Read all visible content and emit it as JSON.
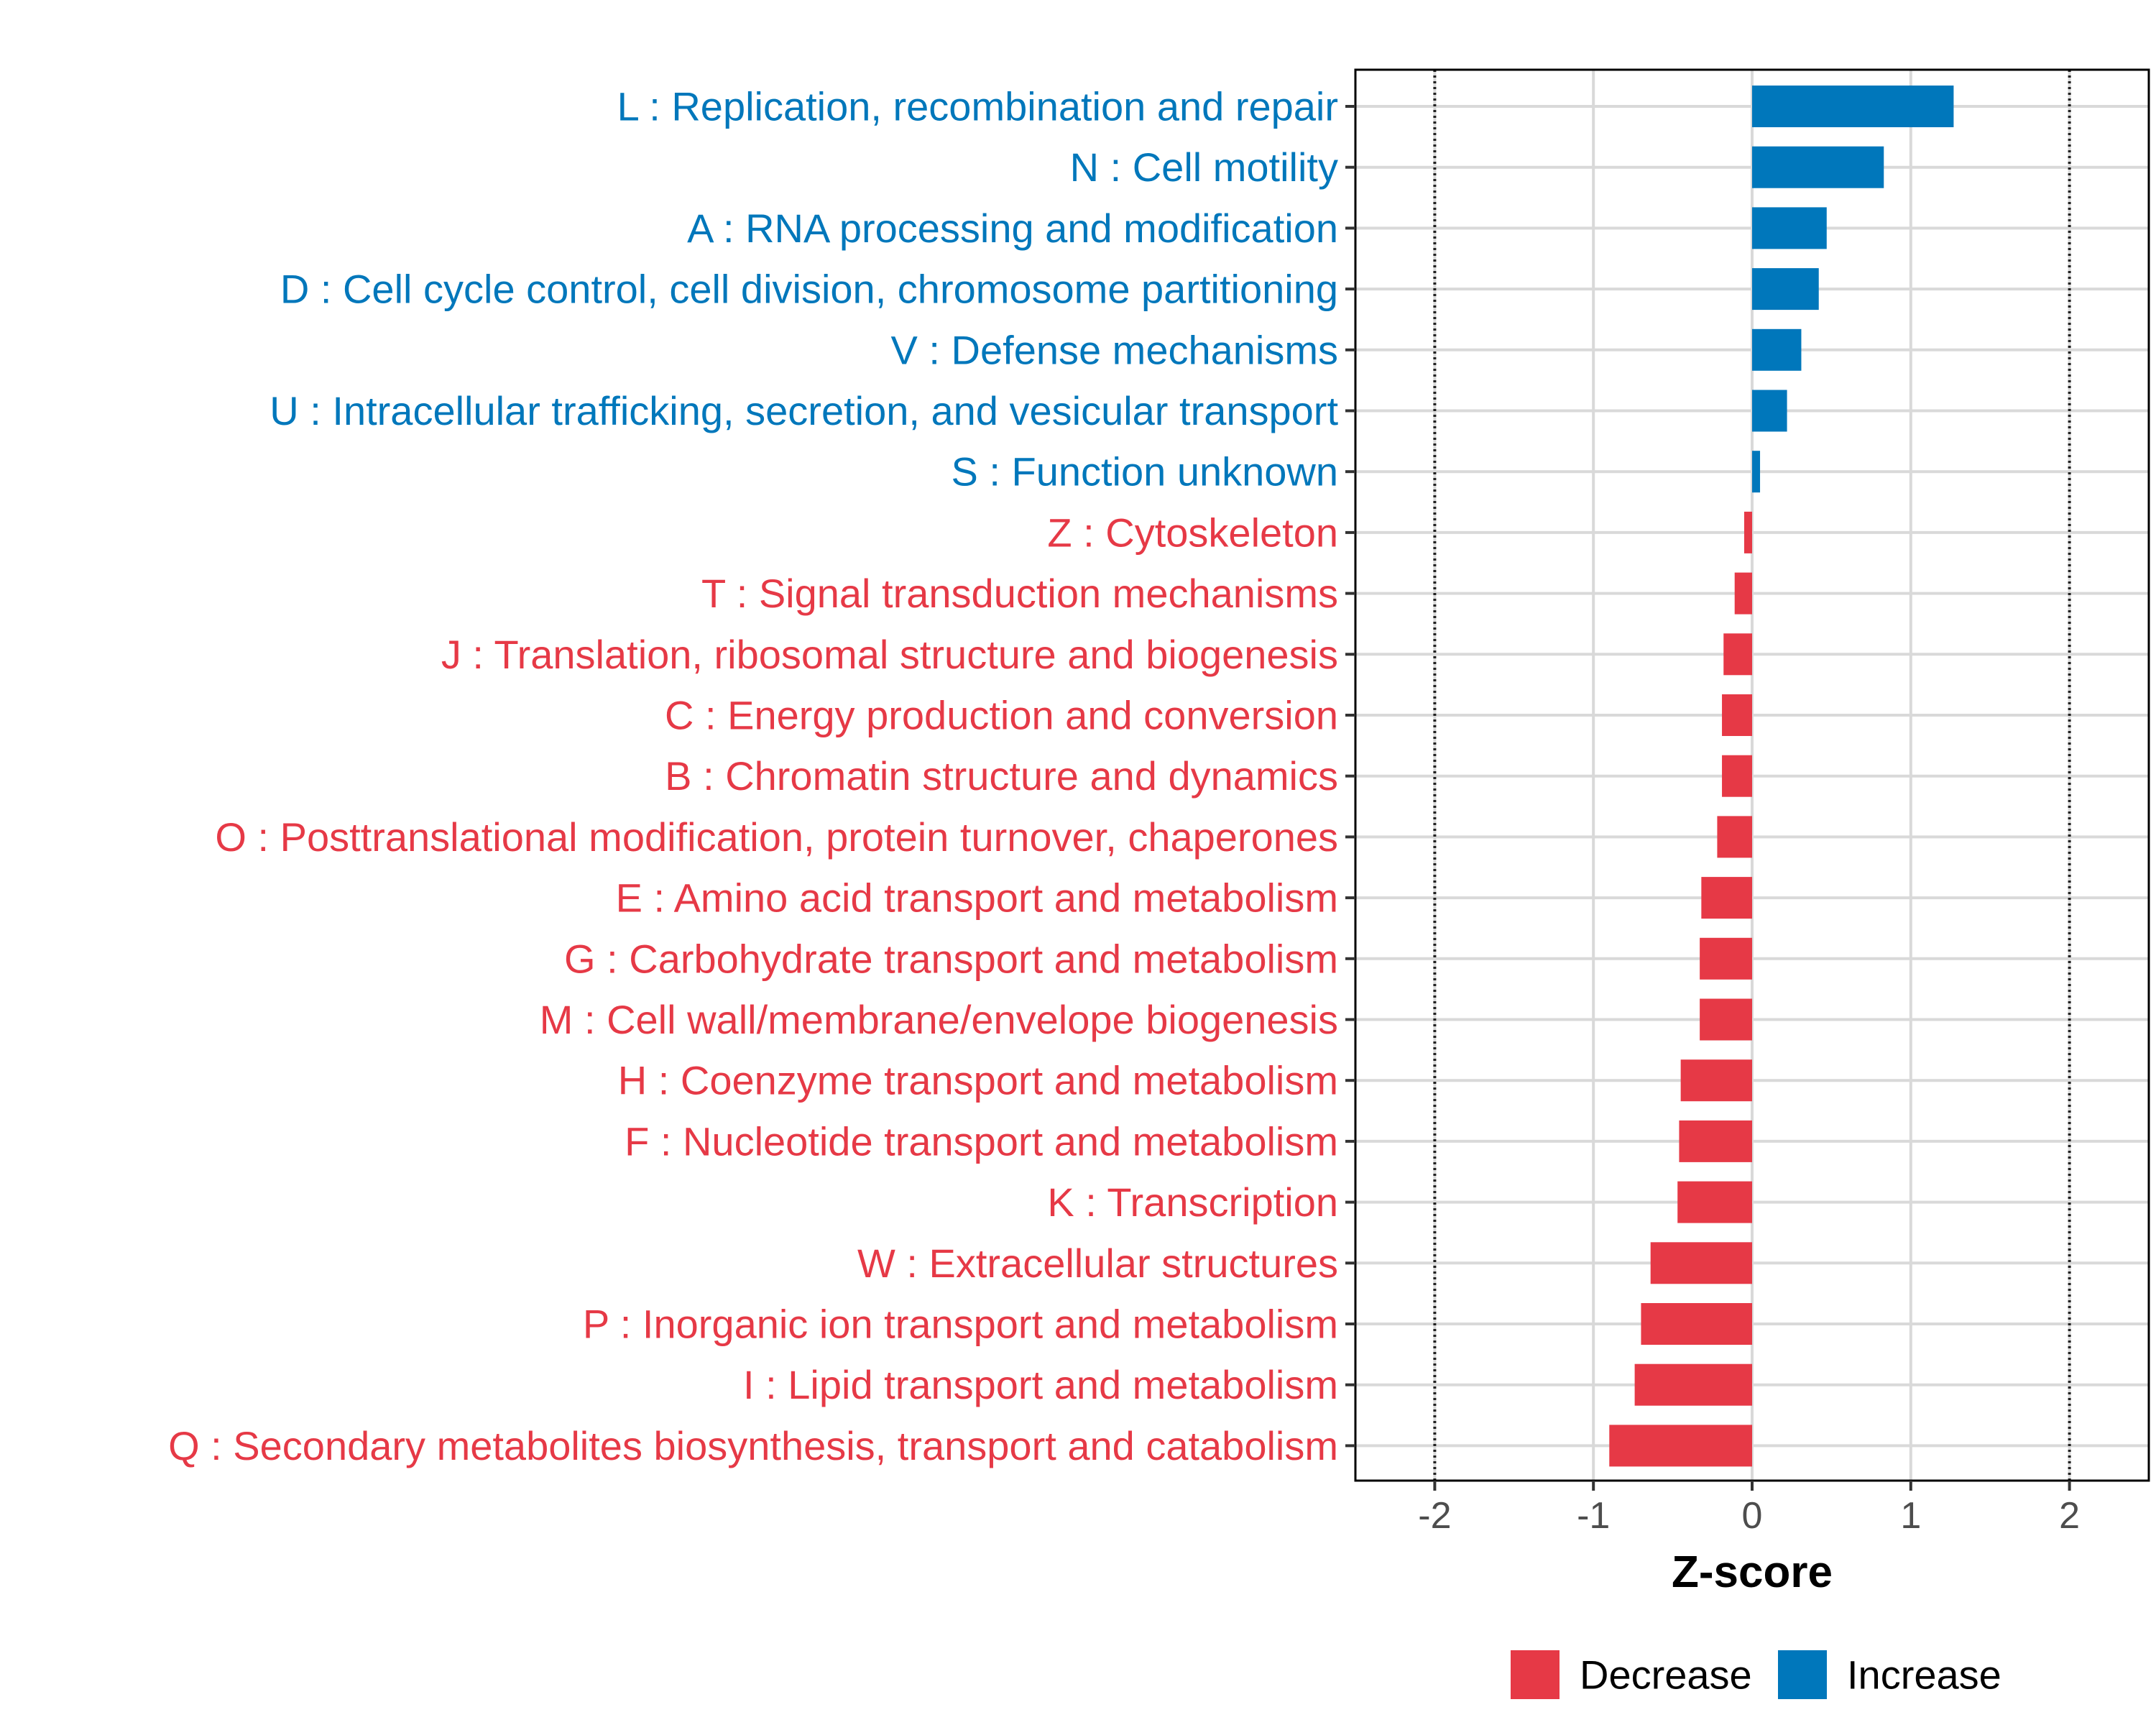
{
  "chart_data": {
    "type": "bar",
    "orientation": "horizontal",
    "xlabel": "Z-score",
    "xlim": [
      -2.5,
      2.5
    ],
    "xticks": [
      -2,
      -1,
      0,
      1,
      2
    ],
    "xtick_labels": [
      "-2",
      "-1",
      "0",
      "1",
      "2"
    ],
    "reference_lines": [
      -2,
      2
    ],
    "grid": true,
    "legend_position": "bottom",
    "colors": {
      "Decrease": "#E63946",
      "Increase": "#0077BB"
    },
    "legend": [
      {
        "name": "Decrease",
        "color": "#E63946"
      },
      {
        "name": "Increase",
        "color": "#0077BB"
      }
    ],
    "categories": [
      {
        "label": "L : Replication, recombination and repair",
        "value": 1.27,
        "direction": "Increase"
      },
      {
        "label": "N : Cell motility",
        "value": 0.83,
        "direction": "Increase"
      },
      {
        "label": "A : RNA processing and modification",
        "value": 0.47,
        "direction": "Increase"
      },
      {
        "label": "D : Cell cycle control, cell division, chromosome partitioning",
        "value": 0.42,
        "direction": "Increase"
      },
      {
        "label": "V : Defense mechanisms",
        "value": 0.31,
        "direction": "Increase"
      },
      {
        "label": "U : Intracellular trafficking, secretion, and vesicular transport",
        "value": 0.22,
        "direction": "Increase"
      },
      {
        "label": "S : Function unknown",
        "value": 0.05,
        "direction": "Increase"
      },
      {
        "label": "Z : Cytoskeleton",
        "value": -0.05,
        "direction": "Decrease"
      },
      {
        "label": "T : Signal transduction mechanisms",
        "value": -0.11,
        "direction": "Decrease"
      },
      {
        "label": "J : Translation, ribosomal structure and biogenesis",
        "value": -0.18,
        "direction": "Decrease"
      },
      {
        "label": "C : Energy production and conversion",
        "value": -0.19,
        "direction": "Decrease"
      },
      {
        "label": "B : Chromatin structure and dynamics",
        "value": -0.19,
        "direction": "Decrease"
      },
      {
        "label": "O : Posttranslational modification, protein turnover, chaperones",
        "value": -0.22,
        "direction": "Decrease"
      },
      {
        "label": "E : Amino acid transport and metabolism",
        "value": -0.32,
        "direction": "Decrease"
      },
      {
        "label": "G : Carbohydrate transport and metabolism",
        "value": -0.33,
        "direction": "Decrease"
      },
      {
        "label": "M : Cell wall/membrane/envelope biogenesis",
        "value": -0.33,
        "direction": "Decrease"
      },
      {
        "label": "H : Coenzyme transport and metabolism",
        "value": -0.45,
        "direction": "Decrease"
      },
      {
        "label": "F : Nucleotide transport and metabolism",
        "value": -0.46,
        "direction": "Decrease"
      },
      {
        "label": "K : Transcription",
        "value": -0.47,
        "direction": "Decrease"
      },
      {
        "label": "W : Extracellular structures",
        "value": -0.64,
        "direction": "Decrease"
      },
      {
        "label": "P : Inorganic ion transport and metabolism",
        "value": -0.7,
        "direction": "Decrease"
      },
      {
        "label": "I : Lipid transport and metabolism",
        "value": -0.74,
        "direction": "Decrease"
      },
      {
        "label": "Q : Secondary metabolites biosynthesis, transport and catabolism",
        "value": -0.9,
        "direction": "Decrease"
      }
    ]
  }
}
